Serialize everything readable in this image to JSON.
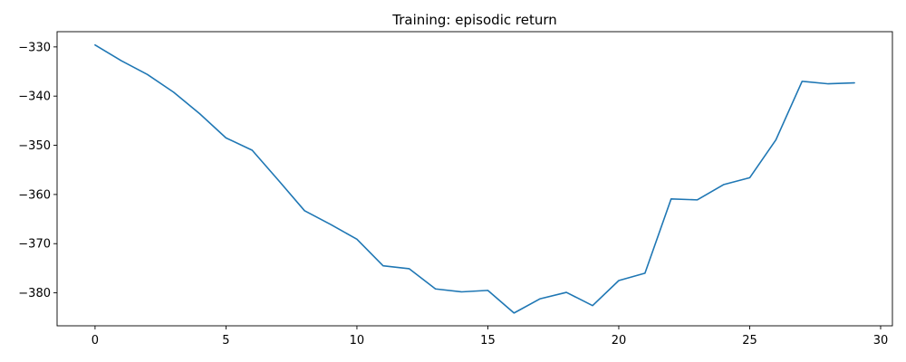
{
  "chart_data": {
    "type": "line",
    "title": "Training: episodic return",
    "xlabel": "",
    "ylabel": "",
    "xlim": [
      -1.45,
      30.45
    ],
    "ylim": [
      -386.7,
      -326.9
    ],
    "x_ticks": [
      0,
      5,
      10,
      15,
      20,
      25,
      30
    ],
    "y_ticks": [
      -330,
      -340,
      -350,
      -360,
      -370,
      -380
    ],
    "grid": false,
    "legend": "none",
    "series": [
      {
        "color": "#1f77b4",
        "x": [
          0,
          1,
          2,
          3,
          4,
          5,
          6,
          7,
          8,
          9,
          10,
          11,
          12,
          13,
          14,
          15,
          16,
          17,
          18,
          19,
          20,
          21,
          22,
          23,
          24,
          25,
          26,
          27,
          28,
          29
        ],
        "values": [
          -329.6,
          -332.8,
          -335.6,
          -339.2,
          -343.6,
          -348.5,
          -351.0,
          -357.1,
          -363.3,
          -366.1,
          -369.1,
          -374.5,
          -375.1,
          -379.2,
          -379.8,
          -379.5,
          -384.1,
          -381.2,
          -379.9,
          -382.6,
          -377.5,
          -376.0,
          -360.9,
          -361.1,
          -358.0,
          -356.6,
          -348.9,
          -337.0,
          -337.5,
          -337.3
        ]
      }
    ]
  }
}
